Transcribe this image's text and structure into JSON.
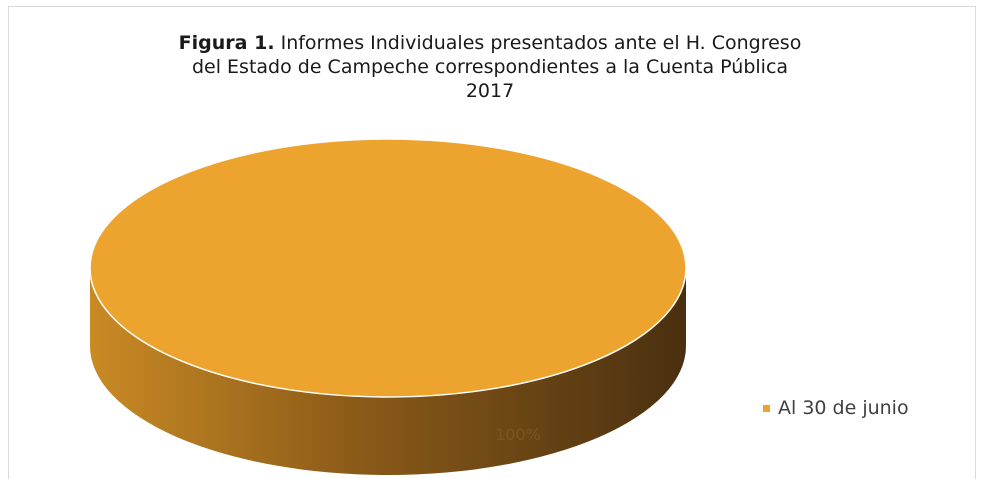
{
  "chart_data": {
    "type": "pie",
    "title_bold": "Figura 1.",
    "title_rest": "Informes Individuales presentados ante el H. Congreso",
    "title_line2": "del Estado de Campeche correspondientes a la Cuenta Pública",
    "title_line3": "2017",
    "slices": [
      {
        "name": "Al 30 de junio",
        "value": 100,
        "label": "100%"
      }
    ],
    "colors": {
      "top": "#EDA42F",
      "rim": "#ffffff"
    },
    "legend_position": "right",
    "style": "3d"
  }
}
